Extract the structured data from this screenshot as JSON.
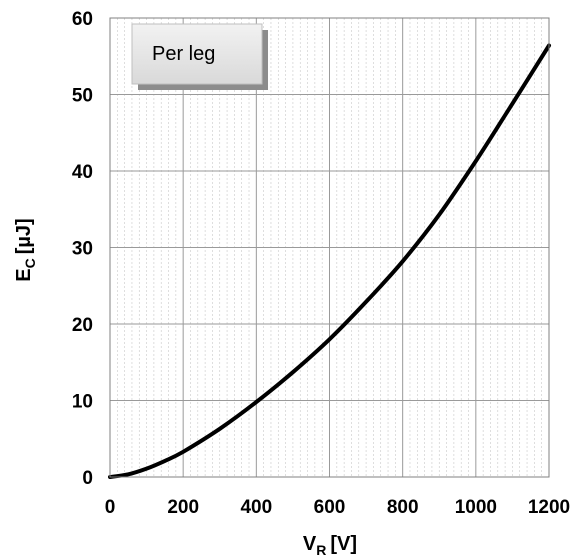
{
  "chart_data": {
    "type": "line",
    "annotation": "Per leg",
    "xlabel": {
      "main": "V",
      "sub": "R",
      "unit": "[V]"
    },
    "ylabel": {
      "main": "E",
      "sub": "C",
      "unit": "[µJ]"
    },
    "xlim": [
      0,
      1200
    ],
    "ylim": [
      0,
      60
    ],
    "x_ticks": [
      0,
      200,
      400,
      600,
      800,
      1000,
      1200
    ],
    "y_ticks": [
      0,
      10,
      20,
      30,
      40,
      50,
      60
    ],
    "grid": {
      "major": true,
      "minor_x": true
    },
    "series": [
      {
        "x": [
          0,
          50,
          100,
          150,
          200,
          300,
          400,
          500,
          600,
          700,
          800,
          900,
          1000,
          1100,
          1200
        ],
        "y": [
          0,
          0.35,
          1.1,
          2.1,
          3.3,
          6.3,
          9.8,
          13.7,
          18.0,
          22.9,
          28.2,
          34.3,
          41.3,
          48.8,
          56.4
        ]
      }
    ]
  }
}
